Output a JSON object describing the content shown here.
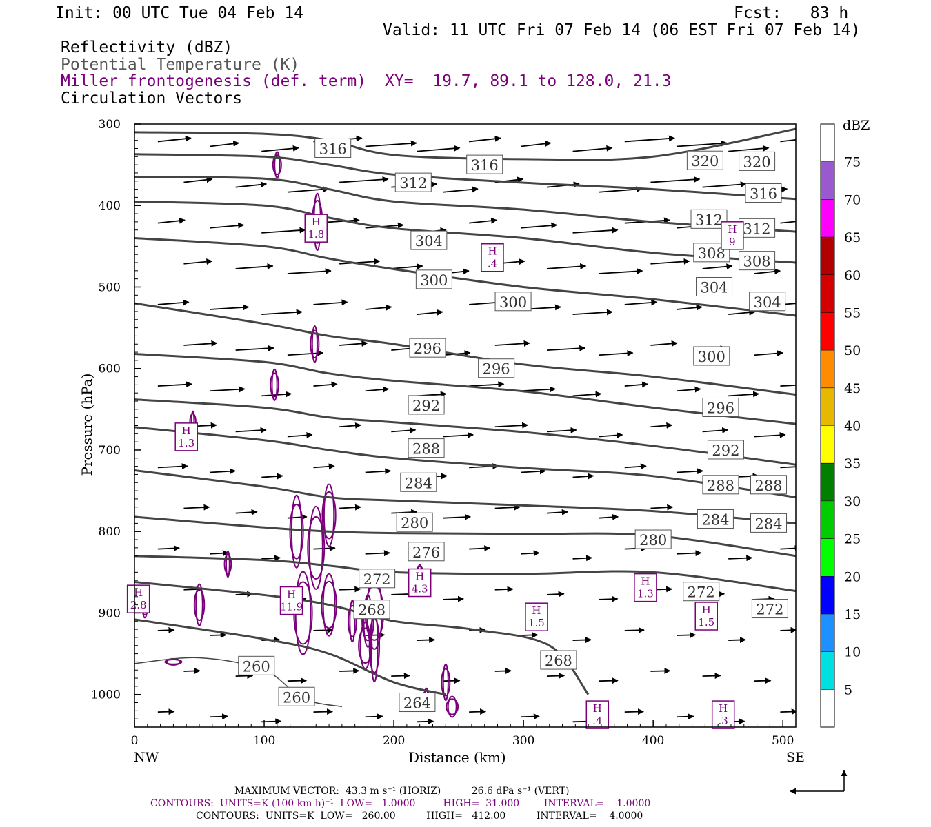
{
  "header": {
    "init": "Init: 00 UTC Tue 04 Feb 14",
    "fcst": "Fcst:   83 h",
    "valid": "Valid: 11 UTC Fri 07 Feb 14 (06 EST Fri 07 Feb 14)",
    "field1": "Reflectivity (dBZ)",
    "field2": "Potential Temperature (K)",
    "field3": "Miller frontogenesis (def. term)",
    "xy": "XY=  19.7, 89.1 to 128.0, 21.3",
    "field4": "Circulation Vectors"
  },
  "colors": {
    "theta": "#444444",
    "fronto": "#7b007b",
    "vector": "#000000"
  },
  "chart_data": {
    "type": "line",
    "xlabel": "Distance (km)",
    "ylabel": "Pressure (hPa)",
    "xlim": [
      0,
      510
    ],
    "ylim": [
      1040,
      300
    ],
    "x_ticks": [
      0,
      100,
      200,
      300,
      400,
      500
    ],
    "y_ticks": [
      300,
      400,
      500,
      600,
      700,
      800,
      900,
      1000
    ],
    "x_left_label": "NW",
    "x_right_label": "SE",
    "theta_contours": [
      {
        "level": 316,
        "x": [
          0,
          100,
          150,
          200,
          300,
          400,
          510
        ],
        "p": [
          310,
          312,
          320,
          338,
          343,
          340,
          306
        ]
      },
      {
        "level": 312,
        "x": [
          0,
          100,
          150,
          200,
          300,
          400,
          510
        ],
        "p": [
          337,
          340,
          350,
          362,
          372,
          380,
          392
        ]
      },
      {
        "level": 308,
        "x": [
          0,
          100,
          150,
          200,
          300,
          400,
          510
        ],
        "p": [
          365,
          367,
          380,
          395,
          405,
          420,
          432
        ]
      },
      {
        "level": 304,
        "x": [
          0,
          100,
          150,
          200,
          300,
          400,
          510
        ],
        "p": [
          395,
          400,
          415,
          428,
          440,
          458,
          470
        ]
      },
      {
        "level": 300,
        "x": [
          0,
          100,
          150,
          200,
          300,
          400,
          510
        ],
        "p": [
          440,
          450,
          465,
          478,
          500,
          515,
          535
        ]
      },
      {
        "level": 296,
        "x": [
          0,
          100,
          150,
          200,
          300,
          400,
          510
        ],
        "p": [
          520,
          545,
          560,
          570,
          595,
          610,
          632
        ]
      },
      {
        "level": 292,
        "x": [
          0,
          100,
          150,
          200,
          300,
          400,
          510
        ],
        "p": [
          582,
          592,
          606,
          615,
          628,
          648,
          668
        ]
      },
      {
        "level": 288,
        "x": [
          0,
          100,
          150,
          200,
          300,
          400,
          510
        ],
        "p": [
          638,
          648,
          660,
          666,
          678,
          695,
          718
        ]
      },
      {
        "level": 284,
        "x": [
          0,
          100,
          150,
          200,
          300,
          400,
          510
        ],
        "p": [
          672,
          688,
          700,
          710,
          722,
          732,
          758
        ]
      },
      {
        "level": 280,
        "x": [
          0,
          100,
          150,
          200,
          300,
          400,
          510
        ],
        "p": [
          725,
          745,
          758,
          762,
          768,
          775,
          790
        ]
      },
      {
        "level": 276,
        "x": [
          0,
          100,
          150,
          200,
          300,
          400,
          510
        ],
        "p": [
          782,
          795,
          800,
          802,
          803,
          805,
          830
        ]
      },
      {
        "level": 272,
        "x": [
          0,
          100,
          150,
          200,
          300,
          400,
          510
        ],
        "p": [
          830,
          835,
          842,
          850,
          852,
          850,
          873
        ]
      },
      {
        "level": 268,
        "x": [
          0,
          100,
          150,
          200,
          260,
          320,
          350
        ],
        "p": [
          862,
          878,
          890,
          910,
          920,
          940,
          1000
        ]
      },
      {
        "level": 264,
        "x": [
          0,
          100,
          150,
          200,
          240
        ],
        "p": [
          908,
          932,
          950,
          985,
          1000
        ]
      },
      {
        "level": 260,
        "x": [
          0,
          50,
          100,
          130,
          160
        ],
        "p": [
          962,
          955,
          970,
          1005,
          1015
        ]
      }
    ],
    "contour_labels": [
      {
        "text": "316",
        "x": 153,
        "p": 330
      },
      {
        "text": "316",
        "x": 270,
        "p": 350
      },
      {
        "text": "320",
        "x": 440,
        "p": 345
      },
      {
        "text": "320",
        "x": 480,
        "p": 346
      },
      {
        "text": "312",
        "x": 215,
        "p": 372
      },
      {
        "text": "316",
        "x": 485,
        "p": 385
      },
      {
        "text": "312",
        "x": 443,
        "p": 417
      },
      {
        "text": "312",
        "x": 480,
        "p": 428
      },
      {
        "text": "304",
        "x": 227,
        "p": 443
      },
      {
        "text": "308",
        "x": 445,
        "p": 458
      },
      {
        "text": "308",
        "x": 480,
        "p": 468
      },
      {
        "text": "300",
        "x": 231,
        "p": 491
      },
      {
        "text": "300",
        "x": 292,
        "p": 518
      },
      {
        "text": "304",
        "x": 447,
        "p": 500
      },
      {
        "text": "304",
        "x": 488,
        "p": 518
      },
      {
        "text": "296",
        "x": 226,
        "p": 575
      },
      {
        "text": "296",
        "x": 279,
        "p": 600
      },
      {
        "text": "300",
        "x": 445,
        "p": 585
      },
      {
        "text": "292",
        "x": 225,
        "p": 645
      },
      {
        "text": "296",
        "x": 452,
        "p": 648
      },
      {
        "text": "288",
        "x": 225,
        "p": 698
      },
      {
        "text": "292",
        "x": 456,
        "p": 700
      },
      {
        "text": "284",
        "x": 219,
        "p": 740
      },
      {
        "text": "288",
        "x": 452,
        "p": 743
      },
      {
        "text": "288",
        "x": 489,
        "p": 743
      },
      {
        "text": "280",
        "x": 216,
        "p": 789
      },
      {
        "text": "284",
        "x": 448,
        "p": 785
      },
      {
        "text": "284",
        "x": 489,
        "p": 790
      },
      {
        "text": "280",
        "x": 400,
        "p": 810
      },
      {
        "text": "276",
        "x": 225,
        "p": 825
      },
      {
        "text": "272",
        "x": 187,
        "p": 858
      },
      {
        "text": "272",
        "x": 437,
        "p": 874
      },
      {
        "text": "272",
        "x": 490,
        "p": 895
      },
      {
        "text": "268",
        "x": 183,
        "p": 896
      },
      {
        "text": "268",
        "x": 327,
        "p": 958
      },
      {
        "text": "260",
        "x": 94,
        "p": 965
      },
      {
        "text": "260",
        "x": 125,
        "p": 1003
      },
      {
        "text": "264",
        "x": 218,
        "p": 1010
      }
    ],
    "highs": [
      {
        "value": "1.8",
        "x": 140,
        "p": 427
      },
      {
        "value": ".4",
        "x": 276,
        "p": 463
      },
      {
        "value": "9",
        "x": 461,
        "p": 436
      },
      {
        "value": "1.3",
        "x": 40,
        "p": 683
      },
      {
        "value": "2.8",
        "x": 3,
        "p": 882
      },
      {
        "value": "11.9",
        "x": 121,
        "p": 884
      },
      {
        "value": "4.3",
        "x": 220,
        "p": 862
      },
      {
        "value": "1.5",
        "x": 310,
        "p": 904
      },
      {
        "value": "1.3",
        "x": 394,
        "p": 868
      },
      {
        "value": "1.5",
        "x": 441,
        "p": 903
      },
      {
        "value": ".4",
        "x": 357,
        "p": 1024
      },
      {
        "value": ".3",
        "x": 454,
        "p": 1024
      }
    ],
    "colorbar": {
      "label": "dBZ",
      "levels": [
        "5",
        "10",
        "15",
        "20",
        "25",
        "30",
        "35",
        "40",
        "45",
        "50",
        "55",
        "60",
        "65",
        "70",
        "75"
      ],
      "colors": [
        "#ffffff",
        "#00e0e0",
        "#1e90ff",
        "#0000ff",
        "#00ff00",
        "#00cc00",
        "#007f00",
        "#ffff00",
        "#e6b800",
        "#ff8c00",
        "#ff0000",
        "#d40000",
        "#b00000",
        "#ff00ff",
        "#9b59d0",
        "#ffffff"
      ]
    }
  },
  "footer": {
    "max_vector": "MAXIMUM VECTOR:  43.3 m s⁻¹ (HORIZ)          26.6 dPa s⁻¹ (VERT)",
    "contours1": "CONTOURS:  UNITS=K (100 km h)⁻¹  LOW=   1.0000         HIGH=  31.000        INTERVAL=    1.0000",
    "contours2": "CONTOURS:  UNITS=K  LOW=   260.00          HIGH=   412.00          INTERVAL=    4.0000"
  }
}
